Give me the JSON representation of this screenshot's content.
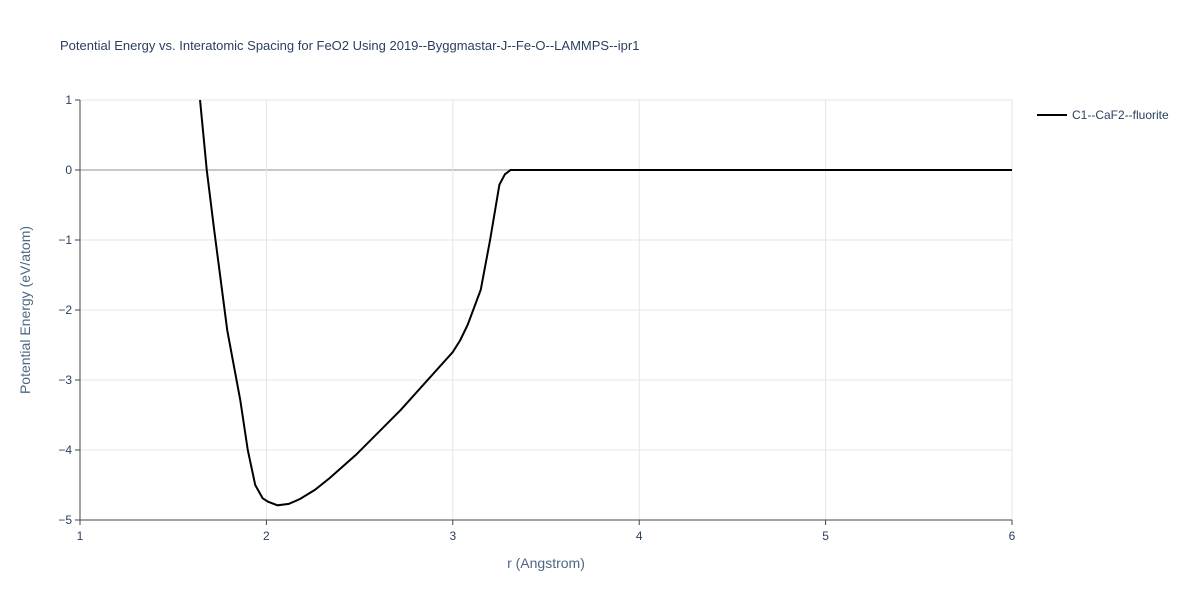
{
  "chart_data": {
    "type": "line",
    "title": "Potential Energy vs. Interatomic Spacing for FeO2 Using 2019--Byggmastar-J--Fe-O--LAMMPS--ipr1",
    "x_label": "r (Angstrom)",
    "y_label": "Potential Energy (eV/atom)",
    "xlim": [
      1,
      6
    ],
    "ylim": [
      -5,
      1
    ],
    "xticks": [
      1,
      2,
      3,
      4,
      5,
      6
    ],
    "yticks": [
      {
        "value": -5,
        "label": "−5"
      },
      {
        "value": -4,
        "label": "−4"
      },
      {
        "value": -3,
        "label": "−3"
      },
      {
        "value": -2,
        "label": "−2"
      },
      {
        "value": -1,
        "label": "−1"
      },
      0,
      1
    ],
    "grid": true,
    "legend": "right",
    "x": [
      1.644,
      1.68,
      1.72,
      1.79,
      1.86,
      1.9,
      1.94,
      1.98,
      2.01,
      2.06,
      2.12,
      2.18,
      2.26,
      2.34,
      2.48,
      2.72,
      3.0,
      3.04,
      3.08,
      3.15,
      3.2,
      3.25,
      3.28,
      3.31,
      4.0,
      5.0,
      6.0
    ],
    "series": [
      {
        "name": "C1--CaF2--fluorite",
        "color": "#000000",
        "values": [
          1.0,
          0.0,
          -0.86,
          -2.29,
          -3.29,
          -4.0,
          -4.5,
          -4.69,
          -4.74,
          -4.79,
          -4.77,
          -4.7,
          -4.57,
          -4.4,
          -4.07,
          -3.43,
          -2.6,
          -2.43,
          -2.21,
          -1.71,
          -1.0,
          -0.21,
          -0.06,
          0.0,
          0.0,
          0.0,
          0.0
        ]
      }
    ]
  }
}
